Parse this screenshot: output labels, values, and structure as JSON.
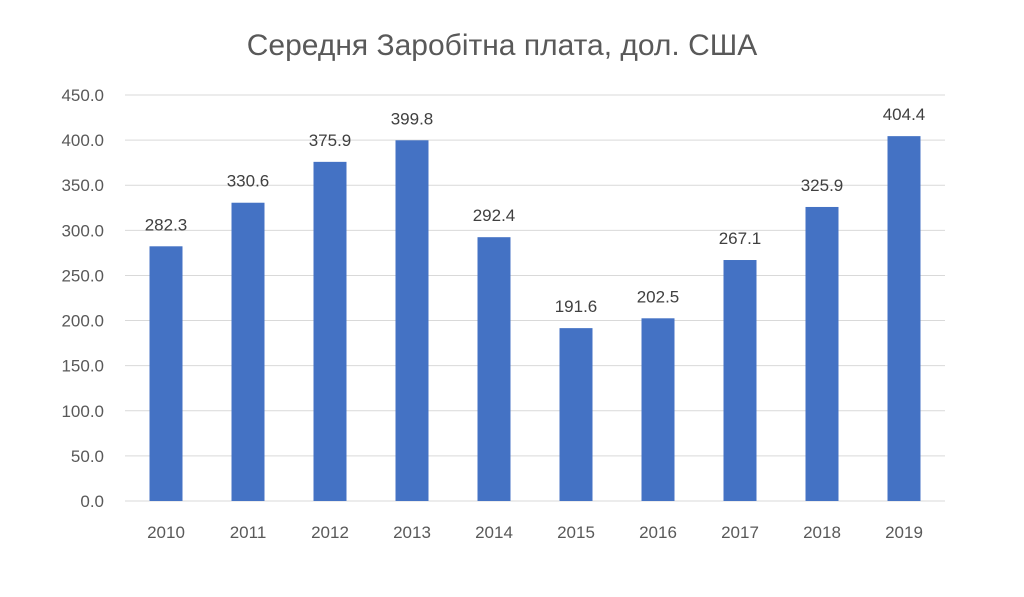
{
  "chart_data": {
    "type": "bar",
    "title": "Середня Заробітна плата, дол. США",
    "xlabel": "",
    "ylabel": "",
    "categories": [
      "2010",
      "2011",
      "2012",
      "2013",
      "2014",
      "2015",
      "2016",
      "2017",
      "2018",
      "2019"
    ],
    "values": [
      282.3,
      330.6,
      375.9,
      399.8,
      292.4,
      191.6,
      202.5,
      267.1,
      325.9,
      404.4
    ],
    "data_labels": [
      "282.3",
      "330.6",
      "375.9",
      "399.8",
      "292.4",
      "191.6",
      "202.5",
      "267.1",
      "325.9",
      "404.4"
    ],
    "ylim": [
      0,
      450
    ],
    "yticks": [
      "0.0",
      "50.0",
      "100.0",
      "150.0",
      "200.0",
      "250.0",
      "300.0",
      "350.0",
      "400.0",
      "450.0"
    ],
    "grid": true,
    "legend": "none",
    "bar_color": "#4472c4"
  }
}
